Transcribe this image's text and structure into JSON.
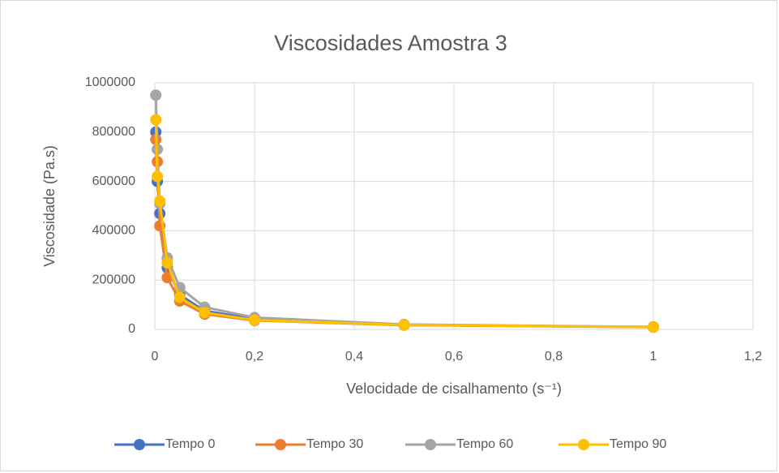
{
  "chart_data": {
    "type": "line",
    "title": "Viscosidades Amostra 3",
    "x_label": "Velocidade de cisalhamento (s⁻¹)",
    "y_label": "Viscosidade (Pa.s)",
    "x": [
      0.002,
      0.005,
      0.01,
      0.025,
      0.05,
      0.1,
      0.2,
      0.5,
      1
    ],
    "series": [
      {
        "name": "Tempo 0",
        "color": "#4472c4",
        "values": [
          800000,
          600000,
          470000,
          250000,
          140000,
          75000,
          42000,
          18000,
          10000
        ]
      },
      {
        "name": "Tempo 30",
        "color": "#ed7d31",
        "values": [
          770000,
          680000,
          420000,
          210000,
          115000,
          62000,
          36000,
          17000,
          9000
        ]
      },
      {
        "name": "Tempo 60",
        "color": "#a5a5a5",
        "values": [
          950000,
          730000,
          510000,
          290000,
          170000,
          90000,
          48000,
          20000,
          10000
        ]
      },
      {
        "name": "Tempo 90",
        "color": "#ffc000",
        "values": [
          850000,
          620000,
          520000,
          270000,
          130000,
          68000,
          38000,
          18000,
          9500
        ]
      }
    ],
    "xlim": [
      0,
      1.2
    ],
    "xticks": [
      0,
      {
        "value": 0.2,
        "label": "0,2"
      },
      {
        "value": 0.4,
        "label": "0,4"
      },
      {
        "value": 0.6,
        "label": "0,6"
      },
      {
        "value": 0.8,
        "label": "0,8"
      },
      {
        "value": 1,
        "label": "1"
      },
      {
        "value": 1.2,
        "label": "1,2"
      }
    ],
    "ylim": [
      0,
      1000000
    ],
    "yticks": [
      0,
      200000,
      400000,
      600000,
      800000,
      1000000
    ],
    "grid": true,
    "legend": "bottom"
  }
}
